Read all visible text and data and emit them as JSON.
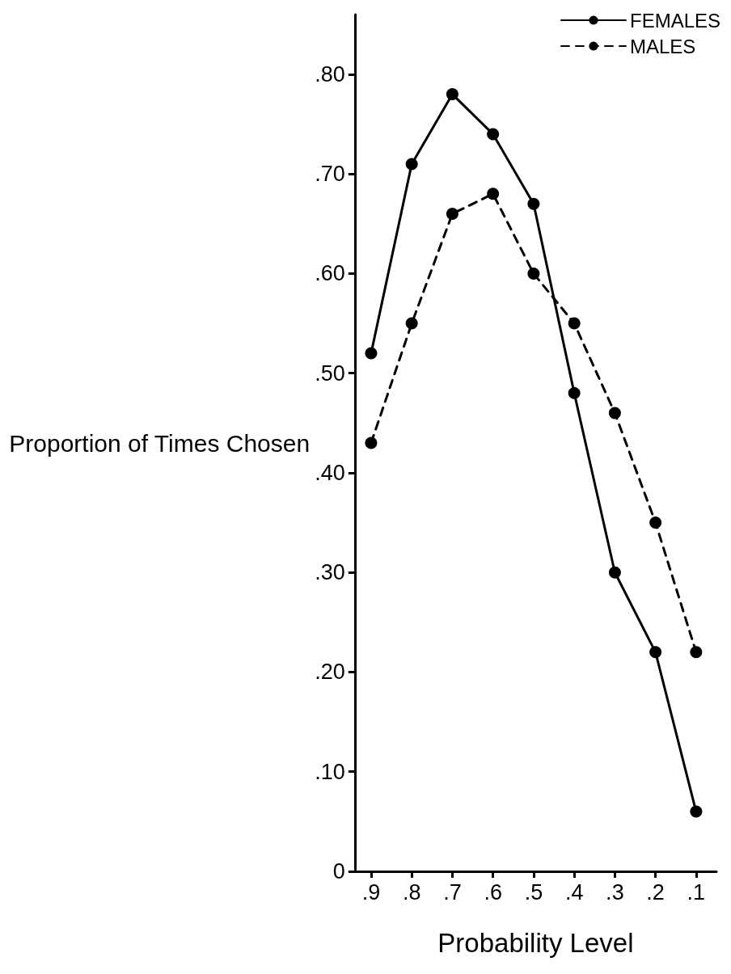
{
  "chart_data": {
    "type": "line",
    "xlabel": "Probability Level",
    "ylabel": "Proportion of Times Chosen",
    "x": [
      0.9,
      0.8,
      0.7,
      0.6,
      0.5,
      0.4,
      0.3,
      0.2,
      0.1
    ],
    "series": [
      {
        "name": "FEMALES",
        "color": "#000000",
        "line_style": "solid",
        "values": [
          0.52,
          0.71,
          0.78,
          0.74,
          0.67,
          0.48,
          0.3,
          0.22,
          0.06
        ]
      },
      {
        "name": "MALES",
        "color": "#000000",
        "line_style": "dashed",
        "values": [
          0.43,
          0.55,
          0.66,
          0.68,
          0.6,
          0.55,
          0.46,
          0.35,
          0.22
        ]
      }
    ],
    "xlim": [
      0.94,
      0.05
    ],
    "xticks": [
      {
        "value": 0.9,
        "label": ".9"
      },
      {
        "value": 0.8,
        "label": ".8"
      },
      {
        "value": 0.7,
        "label": ".7"
      },
      {
        "value": 0.6,
        "label": ".6"
      },
      {
        "value": 0.5,
        "label": ".5"
      },
      {
        "value": 0.4,
        "label": ".4"
      },
      {
        "value": 0.3,
        "label": ".3"
      },
      {
        "value": 0.2,
        "label": ".2"
      },
      {
        "value": 0.1,
        "label": ".1"
      }
    ],
    "ylim": [
      0,
      0.86
    ],
    "yticks": [
      0,
      {
        "value": 0.1,
        "label": ".10"
      },
      {
        "value": 0.2,
        "label": ".20"
      },
      {
        "value": 0.3,
        "label": ".30"
      },
      {
        "value": 0.4,
        "label": ".40"
      },
      {
        "value": 0.5,
        "label": ".50"
      },
      {
        "value": 0.6,
        "label": ".60"
      },
      {
        "value": 0.7,
        "label": ".70"
      },
      {
        "value": 0.8,
        "label": ".80"
      }
    ],
    "grid": false,
    "legend": "top right",
    "marker": "circle"
  }
}
